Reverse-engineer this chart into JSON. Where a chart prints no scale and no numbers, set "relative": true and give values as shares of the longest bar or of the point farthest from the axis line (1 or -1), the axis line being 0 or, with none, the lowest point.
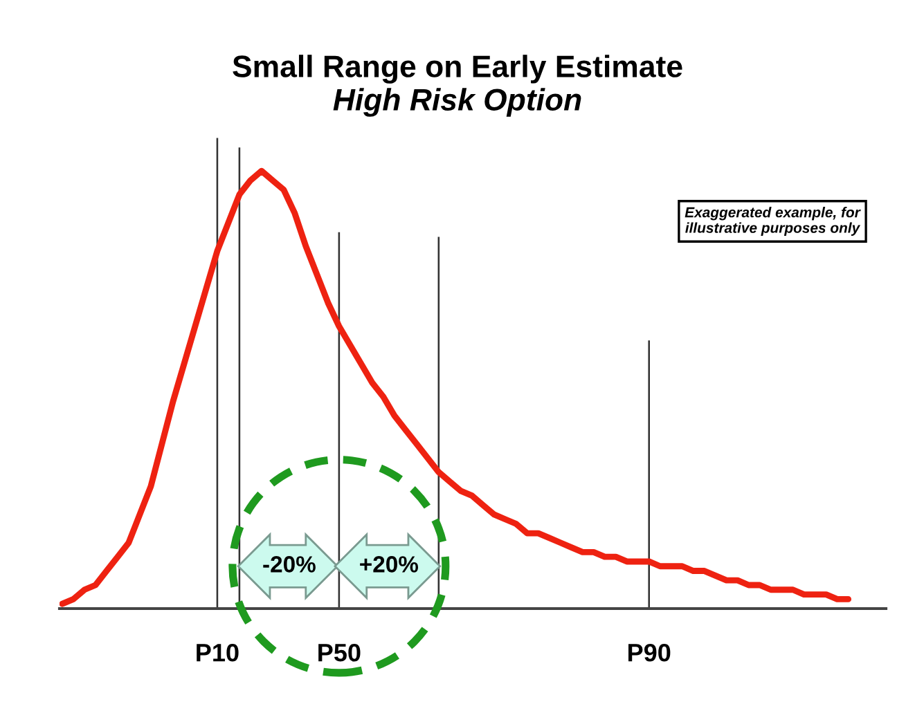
{
  "chart_data": {
    "type": "line",
    "title": "Small Range on Early Estimate",
    "subtitle": "High Risk Option",
    "relative": true,
    "grid": false,
    "legend": false,
    "categories": [
      null,
      null,
      null,
      null,
      null,
      null,
      null,
      null,
      null,
      null,
      null,
      null,
      null,
      null,
      "P10",
      null,
      null,
      null,
      null,
      null,
      null,
      null,
      null,
      null,
      null,
      "P50",
      null,
      null,
      null,
      null,
      null,
      null,
      null,
      null,
      null,
      null,
      null,
      null,
      null,
      null,
      null,
      null,
      null,
      null,
      null,
      null,
      null,
      null,
      null,
      null,
      null,
      null,
      null,
      "P90",
      null,
      null,
      null,
      null,
      null,
      null,
      null,
      null,
      null,
      null,
      null,
      null,
      null,
      null,
      null,
      null,
      null,
      null
    ],
    "series": [
      {
        "color": "#ee2211",
        "values": [
          0.01,
          0.02,
          0.04,
          0.05,
          0.08,
          0.11,
          0.14,
          0.2,
          0.26,
          0.35,
          0.44,
          0.52,
          0.6,
          0.68,
          0.76,
          0.82,
          0.88,
          0.91,
          0.93,
          0.91,
          0.89,
          0.84,
          0.77,
          0.71,
          0.65,
          0.6,
          0.56,
          0.52,
          0.48,
          0.45,
          0.41,
          0.38,
          0.35,
          0.32,
          0.29,
          0.27,
          0.25,
          0.24,
          0.22,
          0.2,
          0.19,
          0.18,
          0.16,
          0.16,
          0.15,
          0.14,
          0.13,
          0.12,
          0.12,
          0.11,
          0.11,
          0.1,
          0.1,
          0.1,
          0.09,
          0.09,
          0.09,
          0.08,
          0.08,
          0.07,
          0.06,
          0.06,
          0.05,
          0.05,
          0.04,
          0.04,
          0.04,
          0.03,
          0.03,
          0.03,
          0.02,
          0.02
        ]
      },
      {
        "type": "bar",
        "color": "#333333",
        "values": [
          null,
          null,
          null,
          null,
          null,
          null,
          null,
          null,
          null,
          null,
          null,
          null,
          null,
          null,
          1.0,
          null,
          0.98,
          null,
          null,
          null,
          null,
          null,
          null,
          null,
          null,
          0.8,
          null,
          null,
          null,
          null,
          null,
          null,
          null,
          null,
          0.79,
          null,
          null,
          null,
          null,
          null,
          null,
          null,
          null,
          null,
          null,
          null,
          null,
          null,
          null,
          null,
          null,
          null,
          null,
          0.57,
          null,
          null,
          null,
          null,
          null,
          null,
          null,
          null,
          null,
          null,
          null,
          null,
          null,
          null,
          null,
          null,
          null,
          null
        ]
      }
    ],
    "annotations": [
      "-20%",
      "+20%",
      "Exaggerated example, for\nillustrative purposes only"
    ]
  }
}
